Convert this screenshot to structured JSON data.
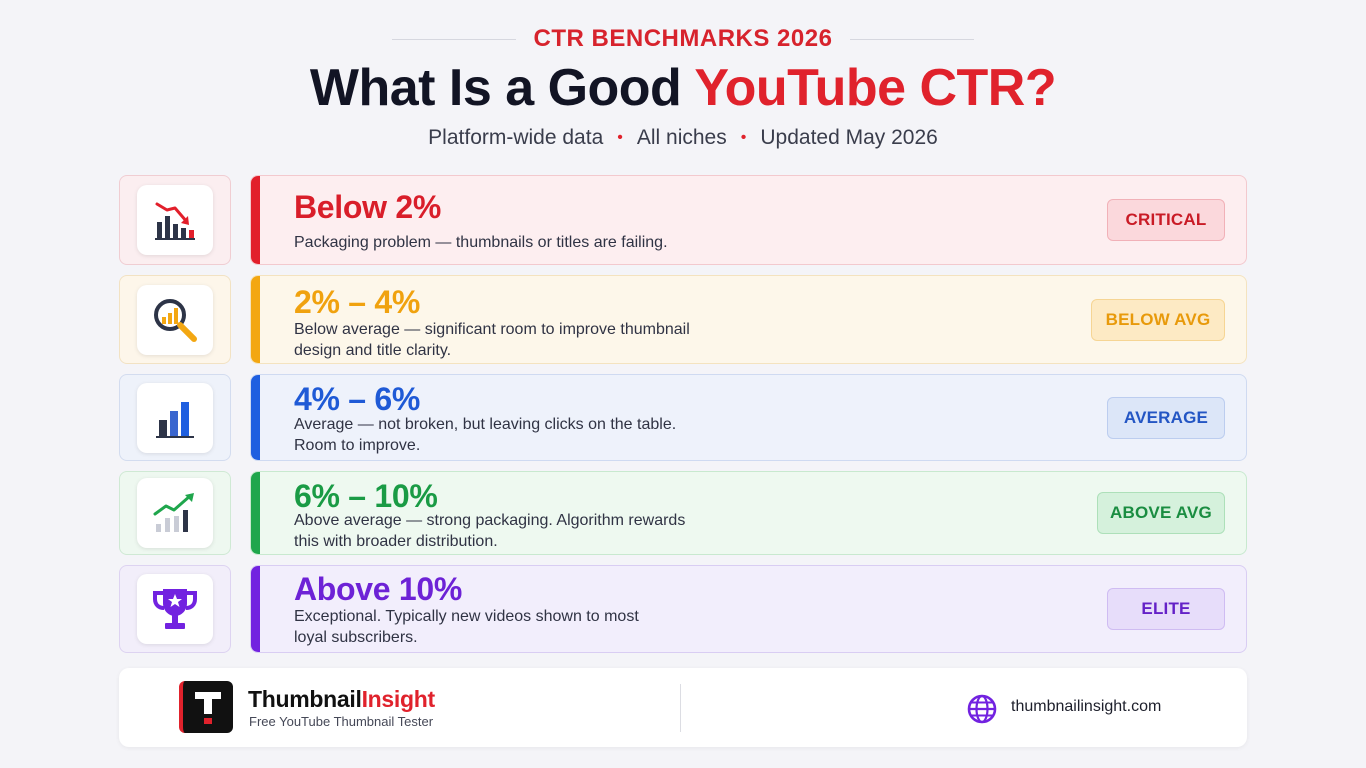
{
  "header": {
    "eyebrow": "CTR BENCHMARKS 2026",
    "title_main": "What Is a Good ",
    "title_accent": "YouTube CTR?",
    "subtitle_items": [
      "Platform-wide data",
      "All niches",
      "Updated May 2026"
    ],
    "separator": "•"
  },
  "tiers": [
    {
      "icon": "chart-down-icon",
      "range": "Below 2%",
      "description": "Packaging problem — thumbnails or titles are failing.",
      "badge": "CRITICAL",
      "color": "#e21f2b"
    },
    {
      "icon": "magnifier-chart-icon",
      "range": "2% – 4%",
      "description": "Below average — significant room to improve thumbnail design and title clarity.",
      "badge": "BELOW AVG",
      "color": "#f3a712"
    },
    {
      "icon": "bar-chart-icon",
      "range": "4% – 6%",
      "description": "Average — not broken, but leaving clicks on the table. Room to improve.",
      "badge": "AVERAGE",
      "color": "#1f5fe0"
    },
    {
      "icon": "trend-up-icon",
      "range": "6% – 10%",
      "description": "Above average — strong packaging. Algorithm rewards this with broader distribution.",
      "badge": "ABOVE AVG",
      "color": "#1fa64c"
    },
    {
      "icon": "trophy-icon",
      "range": "Above 10%",
      "description": "Exceptional. Typically new videos shown to most loyal subscribers.",
      "badge": "ELITE",
      "color": "#7222e0"
    }
  ],
  "footer": {
    "logo_letter": "T",
    "brand_main": "Thumbnail",
    "brand_accent": "Insight",
    "tagline": "Free YouTube Thumbnail Tester",
    "website_icon": "globe-icon",
    "website": "thumbnailinsight.com"
  }
}
